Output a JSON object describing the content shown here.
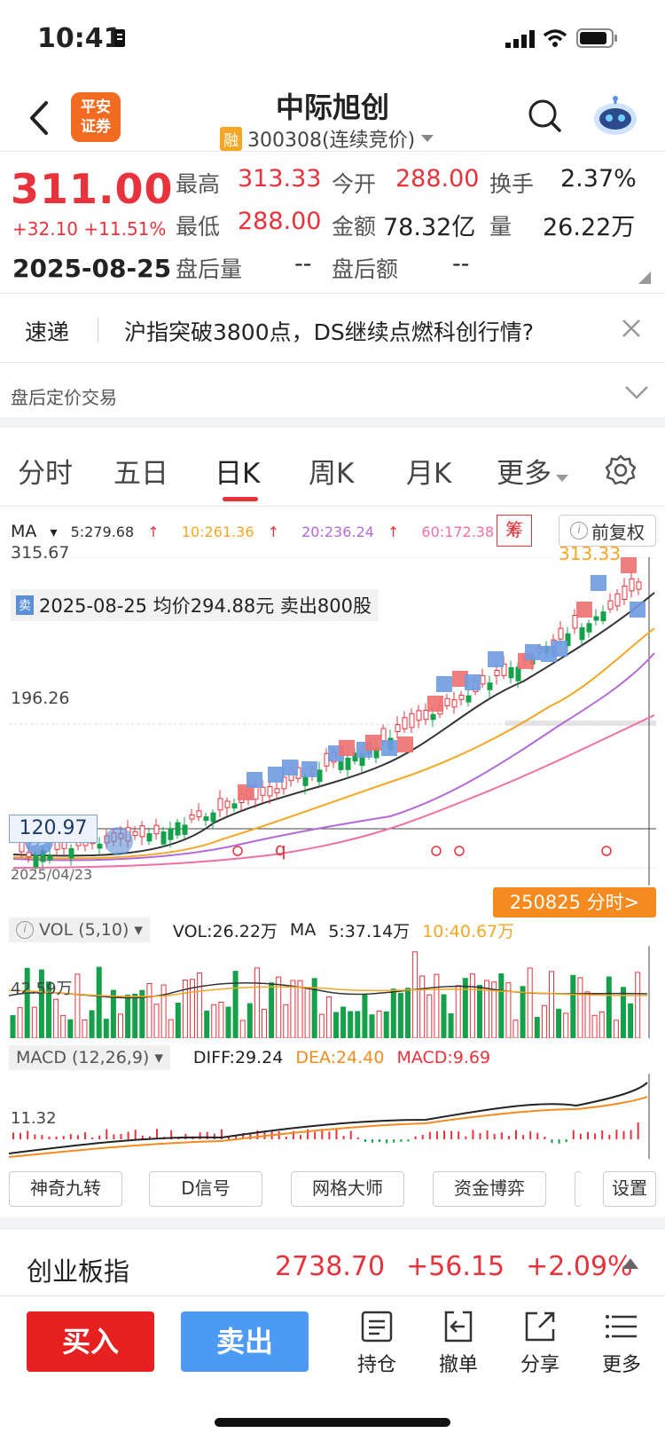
{
  "status_bar": {
    "time": "10:41"
  },
  "header": {
    "logo_line1": "平安",
    "logo_line2": "证券",
    "stock_name": "中际旭创",
    "margin_tag": "融",
    "stock_code": "300308(连续竞价)"
  },
  "quote": {
    "price": "311.00",
    "change": "+32.10",
    "change_pct": "+11.51%",
    "date": "2025-08-25",
    "high_label": "最高",
    "high": "313.33",
    "open_label": "今开",
    "open": "288.00",
    "turnover_label": "换手",
    "turnover": "2.37%",
    "low_label": "最低",
    "low": "288.00",
    "amount_label": "金额",
    "amount": "78.32亿",
    "volume_label": "量",
    "volume": "26.22万",
    "ah_vol_label": "盘后量",
    "ah_vol": "--",
    "ah_amt_label": "盘后额",
    "ah_amt": "--"
  },
  "news": {
    "tag": "速递",
    "text": "沪指突破3800点，DS继续点燃科创行情?"
  },
  "after_hours": {
    "label": "盘后定价交易"
  },
  "period_tabs": [
    "分时",
    "五日",
    "日K",
    "周K",
    "月K",
    "更多"
  ],
  "active_tab": "日K",
  "ma": {
    "label": "MA",
    "ma5": "5:279.68",
    "ma10": "10:261.36",
    "ma20": "20:236.24",
    "ma60": "60:172.38",
    "colors": {
      "ma5": "#333333",
      "ma10": "#f5a623",
      "ma20": "#b36ad9",
      "ma60": "#ef6fa6"
    }
  },
  "buttons": {
    "chou": "筹",
    "fuquan": "前复权"
  },
  "kline": {
    "axis_top": "315.67",
    "axis_mid": "196.26",
    "crosshair_price": "120.97",
    "latest_high_label": "313.33",
    "start_date": "2025/04/23",
    "tooltip_tag": "卖",
    "tooltip": "2025-08-25 均价294.88元 卖出800股",
    "minute_button": "250825 分时>"
  },
  "volume": {
    "selector": "VOL (5,10)",
    "vol": "VOL:26.22万",
    "ma_label": "MA",
    "ma5": "5:37.14万",
    "ma10": "10:40.67万",
    "axis_label": "42.59万"
  },
  "macd": {
    "selector": "MACD (12,26,9)",
    "diff": "DIFF:29.24",
    "dea": "DEA:24.40",
    "macd": "MACD:9.69",
    "axis_label": "11.32"
  },
  "tools": [
    "神奇九转",
    "D信号",
    "网格大师",
    "资金博弈",
    "设置"
  ],
  "index": {
    "name": "创业板指",
    "value": "2738.70",
    "change": "+56.15",
    "pct": "+2.09%"
  },
  "bottom_bar": {
    "buy": "买入",
    "sell": "卖出",
    "items": [
      "持仓",
      "撤单",
      "分享",
      "更多"
    ]
  }
}
